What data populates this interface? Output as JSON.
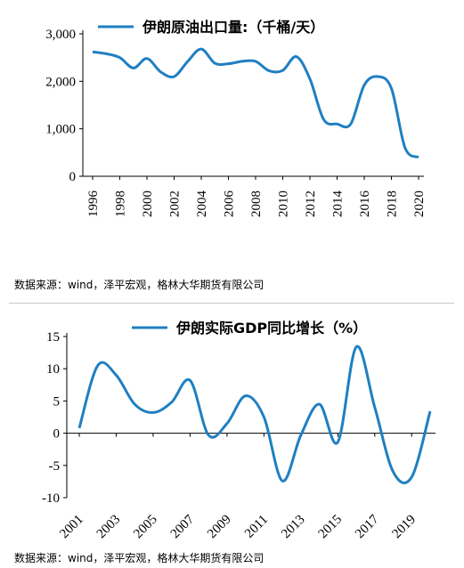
{
  "colors": {
    "line": "#1f7fc2",
    "axis": "#000000"
  },
  "chart_data": [
    {
      "type": "line",
      "series": [
        {
          "name": "伊朗原油出口量:（千桶/天）"
        }
      ],
      "x": [
        1996,
        1997,
        1998,
        1999,
        2000,
        2001,
        2002,
        2003,
        2004,
        2005,
        2006,
        2007,
        2008,
        2009,
        2010,
        2011,
        2012,
        2013,
        2014,
        2015,
        2016,
        2017,
        2018,
        2019,
        2020
      ],
      "y": [
        2620,
        2580,
        2500,
        2280,
        2480,
        2200,
        2100,
        2420,
        2680,
        2380,
        2370,
        2420,
        2420,
        2220,
        2230,
        2520,
        2050,
        1200,
        1100,
        1100,
        1920,
        2100,
        1850,
        600,
        400
      ],
      "xticks": [
        "1996",
        "1998",
        "2000",
        "2002",
        "2004",
        "2006",
        "2008",
        "2010",
        "2012",
        "2014",
        "2016",
        "2018",
        "2020"
      ],
      "yticks": [
        "0",
        "1,000",
        "2,000",
        "3,000"
      ],
      "ylim": [
        0,
        3000
      ],
      "legend": "top"
    },
    {
      "type": "line",
      "series": [
        {
          "name": "伊朗实际GDP同比增长（%）"
        }
      ],
      "x": [
        2001,
        2002,
        2003,
        2004,
        2005,
        2006,
        2007,
        2008,
        2009,
        2010,
        2011,
        2012,
        2013,
        2014,
        2015,
        2016,
        2017,
        2018,
        2019,
        2020
      ],
      "y": [
        0.8,
        10.5,
        9.0,
        4.5,
        3.2,
        4.8,
        8.2,
        -0.3,
        1.5,
        5.8,
        2.5,
        -7.4,
        -0.3,
        4.5,
        -1.4,
        13.4,
        4.0,
        -6.0,
        -6.8,
        3.4
      ],
      "xticks": [
        "2001",
        "2003",
        "2005",
        "2007",
        "2009",
        "2011",
        "2013",
        "2015",
        "2017",
        "2019"
      ],
      "yticks": [
        "-10",
        "-5",
        "0",
        "5",
        "10",
        "15"
      ],
      "ylim": [
        -10,
        15
      ],
      "legend": "top"
    }
  ],
  "sources": {
    "top": "数据来源：wind，泽平宏观，格林大华期货有限公司",
    "bottom": "数据来源：wind，泽平宏观，格林大华期货有限公司"
  }
}
